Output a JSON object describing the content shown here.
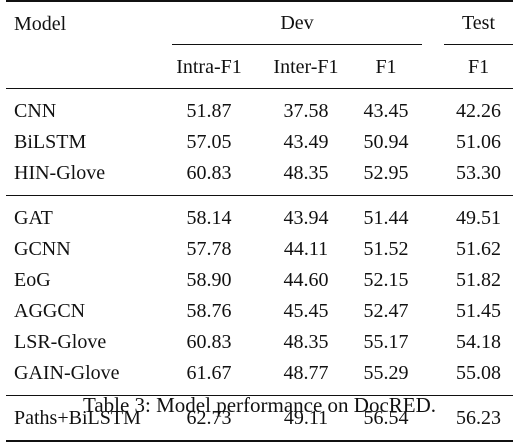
{
  "table": {
    "header": {
      "model": "Model",
      "dev": "Dev",
      "test": "Test",
      "subcols": [
        "Intra-F1",
        "Inter-F1",
        "F1",
        "F1"
      ]
    },
    "groups": [
      {
        "rows": [
          {
            "model": "CNN",
            "values": [
              "51.87",
              "37.58",
              "43.45",
              "42.26"
            ]
          },
          {
            "model": "BiLSTM",
            "values": [
              "57.05",
              "43.49",
              "50.94",
              "51.06"
            ]
          },
          {
            "model": "HIN-Glove",
            "values": [
              "60.83",
              "48.35",
              "52.95",
              "53.30"
            ]
          }
        ]
      },
      {
        "rows": [
          {
            "model": "GAT",
            "values": [
              "58.14",
              "43.94",
              "51.44",
              "49.51"
            ]
          },
          {
            "model": "GCNN",
            "values": [
              "57.78",
              "44.11",
              "51.52",
              "51.62"
            ]
          },
          {
            "model": "EoG",
            "values": [
              "58.90",
              "44.60",
              "52.15",
              "51.82"
            ]
          },
          {
            "model": "AGGCN",
            "values": [
              "58.76",
              "45.45",
              "52.47",
              "51.45"
            ]
          },
          {
            "model": "LSR-Glove",
            "values": [
              "60.83",
              "48.35",
              "55.17",
              "54.18"
            ]
          },
          {
            "model": "GAIN-Glove",
            "values": [
              "61.67",
              "48.77",
              "55.29",
              "55.08"
            ]
          }
        ]
      },
      {
        "rows": [
          {
            "model": "Paths+BiLSTM",
            "values": [
              "62.73",
              "49.11",
              "56.54",
              "56.23"
            ],
            "bold_values": true
          }
        ]
      }
    ]
  },
  "caption": "Table 3: Model performance on DocRED."
}
